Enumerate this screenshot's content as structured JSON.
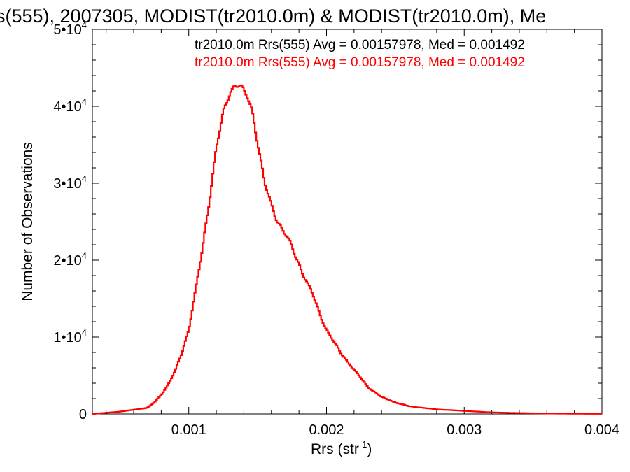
{
  "chart_data": {
    "type": "histogram",
    "title": "s(555), 2007305, MODIST(tr2010.0m) & MODIST(tr2010.0m), Me",
    "xlabel": {
      "base": "Rrs (str",
      "sup": "-1",
      "close": ")"
    },
    "ylabel": "Number of Observations",
    "xlim": [
      0.0003,
      0.004
    ],
    "ylim": [
      0,
      50000
    ],
    "x_ticks": [
      {
        "value": 0.001,
        "label": "0.001"
      },
      {
        "value": 0.002,
        "label": "0.002"
      },
      {
        "value": 0.003,
        "label": "0.003"
      },
      {
        "value": 0.004,
        "label": "0.004"
      }
    ],
    "y_ticks": [
      {
        "value": 0,
        "base": "0",
        "exp": ""
      },
      {
        "value": 10000,
        "base": "1•10",
        "exp": "4"
      },
      {
        "value": 20000,
        "base": "2•10",
        "exp": "4"
      },
      {
        "value": 30000,
        "base": "3•10",
        "exp": "4"
      },
      {
        "value": 40000,
        "base": "4•10",
        "exp": "4"
      },
      {
        "value": 50000,
        "base": "5•10",
        "exp": "4"
      }
    ],
    "annotations": [
      {
        "text": "tr2010.0m Rrs(555) Avg = 0.00157978, Med = 0.001492",
        "color": "#000000"
      },
      {
        "text": "tr2010.0m Rrs(555) Avg = 0.00157978, Med = 0.001492",
        "color": "#ff0000"
      }
    ],
    "series": [
      {
        "color": "#ff0000",
        "x": [
          0.0003,
          0.0005,
          0.0007,
          0.00075,
          0.0008,
          0.00085,
          0.0009,
          0.00095,
          0.001,
          0.00105,
          0.0011,
          0.00115,
          0.0012,
          0.00125,
          0.0013,
          0.00133,
          0.00136,
          0.00138,
          0.0014,
          0.00143,
          0.00146,
          0.0015,
          0.00155,
          0.0016,
          0.00165,
          0.0017,
          0.00175,
          0.0018,
          0.00185,
          0.0019,
          0.00195,
          0.002,
          0.0021,
          0.0022,
          0.0023,
          0.0024,
          0.0025,
          0.0026,
          0.0027,
          0.0028,
          0.003,
          0.0032,
          0.0034,
          0.0036,
          0.0038,
          0.004
        ],
        "y": [
          0,
          300,
          800,
          1500,
          2500,
          3800,
          5500,
          8000,
          11000,
          16000,
          21500,
          28000,
          34500,
          39000,
          42000,
          42700,
          42800,
          42500,
          41800,
          41000,
          39500,
          35500,
          30000,
          27000,
          25000,
          23500,
          21500,
          19500,
          17500,
          15500,
          13000,
          11000,
          8000,
          5800,
          3500,
          2200,
          1500,
          1000,
          800,
          600,
          400,
          200,
          120,
          60,
          30,
          20
        ]
      }
    ]
  }
}
